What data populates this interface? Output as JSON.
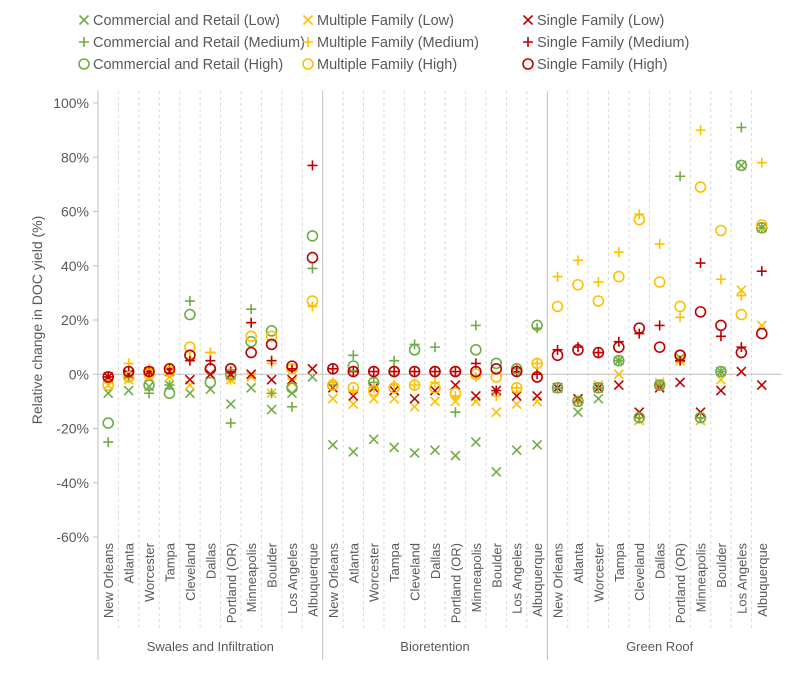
{
  "chart_data": {
    "type": "scatter",
    "title": "",
    "ylabel": "Relative change in DOC yield (%)",
    "ylim": [
      -60,
      100
    ],
    "yticks": [
      -60,
      -40,
      -20,
      0,
      20,
      40,
      60,
      80,
      100
    ],
    "ytick_labels": [
      "-60%",
      "-40%",
      "-20%",
      "0%",
      "20%",
      "40%",
      "60%",
      "80%",
      "100%"
    ],
    "legend_position": "top",
    "groups": [
      "Swales and Infiltration",
      "Bioretention",
      "Green Roof"
    ],
    "cities": [
      "New Orleans",
      "Atlanta",
      "Worcester",
      "Tampa",
      "Cleveland",
      "Dallas",
      "Portland (OR)",
      "Minneapolis",
      "Boulder",
      "Los Angeles",
      "Albuquerque"
    ],
    "colors": {
      "commercial": "#70AD47",
      "multiple": "#FFC000",
      "single": "#C00000"
    },
    "series": [
      {
        "name": "Commercial and Retail (Low)",
        "color": "#70AD47",
        "marker": "x",
        "values": [
          [
            -7,
            -6,
            -4.5,
            -4,
            -7,
            -5.5,
            -11,
            -5,
            -13,
            -7,
            -1
          ],
          [
            -26,
            -28.6,
            -24,
            -27,
            -29,
            -28,
            -30,
            -25,
            -36,
            -28,
            -26
          ],
          [
            -5,
            -14,
            -9,
            5,
            -17,
            -4,
            6,
            -17,
            1,
            77,
            54
          ]
        ]
      },
      {
        "name": "Multiple Family (Low)",
        "color": "#FFC000",
        "marker": "x",
        "values": [
          [
            -4,
            -2,
            -1,
            -1,
            -4,
            0,
            -2,
            -1,
            -7,
            -3,
            2
          ],
          [
            -9,
            -11,
            -9,
            -9,
            -12,
            -10,
            -10,
            -10,
            -14,
            -11,
            -10
          ],
          [
            -5,
            -10,
            -4,
            0,
            -17,
            -3,
            5,
            -17,
            -2,
            31,
            18
          ]
        ]
      },
      {
        "name": "Single Family (Low)",
        "color": "#C00000",
        "marker": "x",
        "values": [
          [
            -1,
            0,
            1,
            1,
            -2,
            0,
            0,
            0,
            -2,
            -2,
            2
          ],
          [
            -5,
            -8,
            -5,
            -6,
            -9,
            -6,
            -4,
            -8,
            -6,
            -8,
            -8
          ],
          [
            -5,
            -9,
            -5,
            -4,
            -14,
            -5,
            -3,
            -14,
            -6,
            1,
            -4
          ]
        ]
      },
      {
        "name": "Commercial and Retail (Medium)",
        "color": "#70AD47",
        "marker": "plus",
        "values": [
          [
            -25,
            -1,
            -7,
            -4,
            27,
            8,
            -18,
            24,
            -7,
            -12,
            39
          ],
          [
            -4,
            7,
            -3,
            5,
            11,
            10,
            -14,
            18,
            -7,
            2,
            17
          ],
          [
            -5,
            -10,
            -5,
            5,
            -16,
            -4,
            73,
            -16,
            1,
            91,
            54
          ]
        ]
      },
      {
        "name": "Multiple Family (Medium)",
        "color": "#FFC000",
        "marker": "plus",
        "values": [
          [
            -3,
            4,
            2,
            2,
            6,
            8,
            -2,
            19,
            4,
            2,
            25
          ],
          [
            -3,
            -6,
            -5,
            -4,
            -4,
            -3,
            -8,
            -1,
            -8,
            -5,
            4
          ],
          [
            36,
            42,
            34,
            45,
            59,
            48,
            21,
            90,
            35,
            29,
            78
          ]
        ]
      },
      {
        "name": "Single Family (Medium)",
        "color": "#C00000",
        "marker": "plus",
        "values": [
          [
            -1,
            1,
            1,
            2,
            5,
            5,
            1,
            19,
            5,
            2,
            77
          ],
          [
            2,
            1,
            1,
            1,
            1,
            1,
            1,
            4,
            -6,
            1,
            0
          ],
          [
            9,
            10,
            8,
            12,
            15,
            18,
            5,
            41,
            14,
            10,
            38
          ]
        ]
      },
      {
        "name": "Commercial and Retail (High)",
        "color": "#70AD47",
        "marker": "circle",
        "values": [
          [
            -18,
            -1,
            -4,
            -7,
            22,
            -3,
            0,
            12,
            16,
            -5,
            51
          ],
          [
            -4,
            3,
            -3,
            1,
            9,
            1,
            1,
            9,
            4,
            2,
            18
          ],
          [
            -5,
            -10,
            -5,
            5,
            -16,
            -4,
            7,
            -16,
            1,
            77,
            54
          ]
        ]
      },
      {
        "name": "Multiple Family (High)",
        "color": "#FFC000",
        "marker": "circle",
        "values": [
          [
            -4,
            -1,
            0,
            1,
            10,
            2,
            2,
            14,
            14,
            2,
            27
          ],
          [
            -4,
            -5,
            -6,
            -5,
            -4,
            -5,
            -7,
            0,
            -1,
            -5,
            4
          ],
          [
            25,
            33,
            27,
            36,
            57,
            34,
            25,
            69,
            53,
            22,
            55
          ]
        ]
      },
      {
        "name": "Single Family (High)",
        "color": "#C00000",
        "marker": "circle",
        "values": [
          [
            -1,
            1,
            1,
            2,
            7,
            2,
            2,
            8,
            11,
            3,
            43
          ],
          [
            2,
            1,
            1,
            1,
            1,
            1,
            1,
            1,
            2,
            1,
            -1
          ],
          [
            7,
            9,
            8,
            10,
            17,
            10,
            7,
            23,
            18,
            8,
            15
          ]
        ]
      }
    ]
  }
}
